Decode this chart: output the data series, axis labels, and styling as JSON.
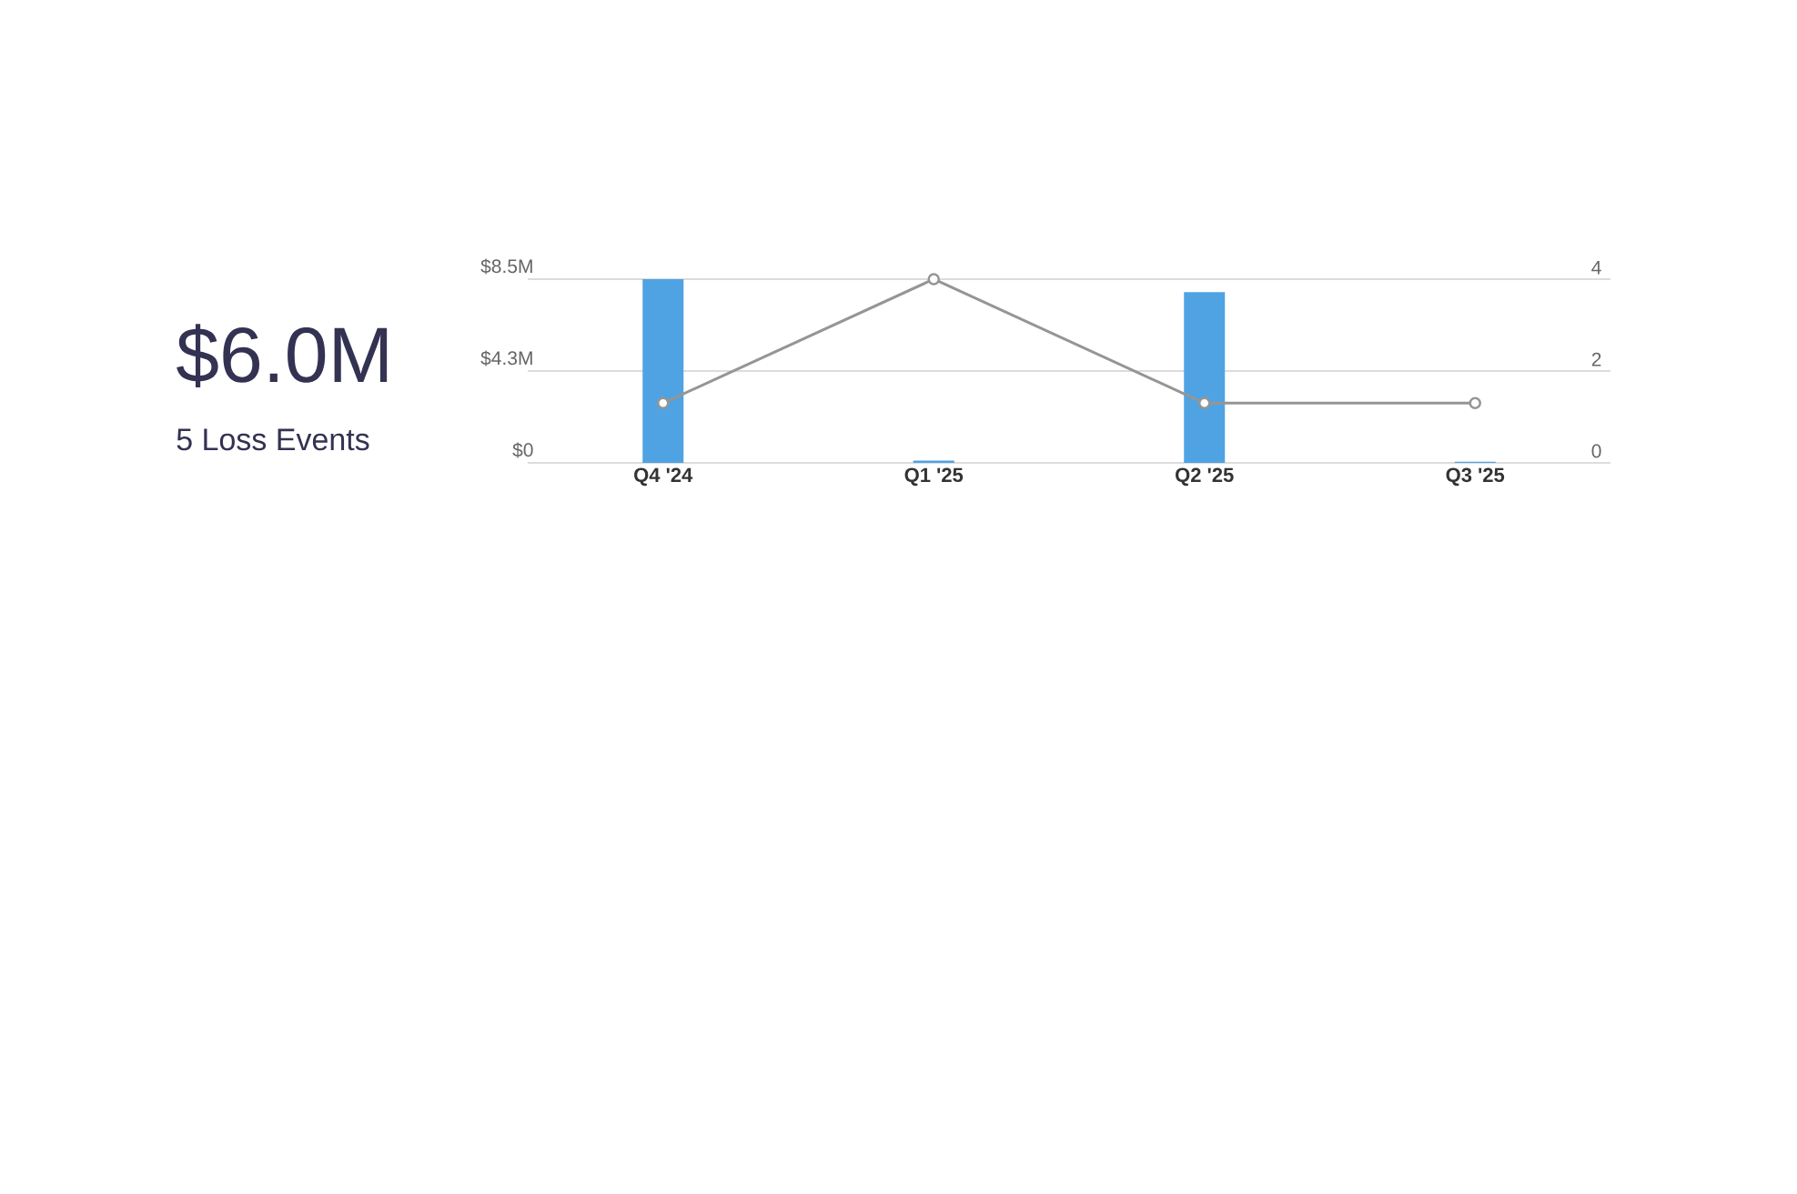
{
  "chart_data": {
    "type": "bar",
    "categories": [
      "Q4 '24",
      "Q1 '25",
      "Q2 '25",
      "Q3 '25"
    ],
    "series": [
      {
        "color": "#4fa3e3",
        "values": [
          8.5,
          0.1,
          7.9,
          0.05
        ]
      },
      {
        "type": "line",
        "axis": "y2",
        "color": "#959595",
        "values": [
          1.3,
          4,
          1.3,
          1.3
        ]
      }
    ],
    "ylim": [
      0,
      8.5
    ],
    "yticks": [
      {
        "value": 0,
        "label": "$0"
      },
      {
        "value": 4.25,
        "label": "$4.3M"
      },
      {
        "value": 8.5,
        "label": "$8.5M"
      }
    ],
    "y2lim": [
      0,
      4
    ],
    "y2ticks": [
      0,
      2,
      4
    ],
    "grid": "y",
    "marker": "circle",
    "annotations": [
      "$6.0M",
      "5 Loss Events"
    ]
  }
}
